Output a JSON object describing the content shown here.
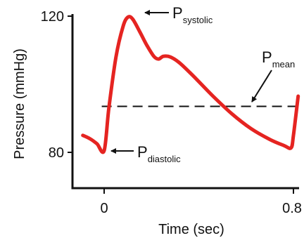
{
  "chart_data": {
    "type": "line",
    "xlabel": "Time (sec)",
    "ylabel": "Pressure (mmHg)",
    "xlim": [
      -0.09,
      0.82
    ],
    "ylim": [
      76,
      122
    ],
    "x_ticks": [
      {
        "value": 0,
        "label": "0"
      },
      {
        "value": 0.8,
        "label": "0.8"
      }
    ],
    "y_ticks": [
      {
        "value": 80,
        "label": "80"
      },
      {
        "value": 120,
        "label": "120"
      }
    ],
    "series": [
      {
        "color": "#e52421",
        "style": "solid",
        "points": [
          {
            "x": -0.09,
            "y": 85
          },
          {
            "x": -0.06,
            "y": 84
          },
          {
            "x": -0.03,
            "y": 82.5
          },
          {
            "x": 0.0,
            "y": 80.5
          },
          {
            "x": 0.02,
            "y": 93
          },
          {
            "x": 0.05,
            "y": 108
          },
          {
            "x": 0.08,
            "y": 117
          },
          {
            "x": 0.1,
            "y": 119.7
          },
          {
            "x": 0.12,
            "y": 119.2
          },
          {
            "x": 0.15,
            "y": 115.5
          },
          {
            "x": 0.18,
            "y": 111.5
          },
          {
            "x": 0.21,
            "y": 108.2
          },
          {
            "x": 0.23,
            "y": 107.4
          },
          {
            "x": 0.25,
            "y": 108.2
          },
          {
            "x": 0.28,
            "y": 108
          },
          {
            "x": 0.32,
            "y": 106.2
          },
          {
            "x": 0.38,
            "y": 102.2
          },
          {
            "x": 0.46,
            "y": 96.5
          },
          {
            "x": 0.54,
            "y": 91.3
          },
          {
            "x": 0.62,
            "y": 87
          },
          {
            "x": 0.7,
            "y": 83.8
          },
          {
            "x": 0.76,
            "y": 82
          },
          {
            "x": 0.79,
            "y": 81.3
          },
          {
            "x": 0.8,
            "y": 85
          },
          {
            "x": 0.82,
            "y": 96.5
          }
        ]
      },
      {
        "color": "#111111",
        "style": "dashed",
        "points": [
          {
            "x": -0.01,
            "y": 93.5
          },
          {
            "x": 0.81,
            "y": 93.5
          }
        ]
      }
    ],
    "annotations": [
      {
        "main": "P",
        "sub": "systolic"
      },
      {
        "main": "P",
        "sub": "diastolic"
      },
      {
        "main": "P",
        "sub": "mean"
      }
    ]
  }
}
